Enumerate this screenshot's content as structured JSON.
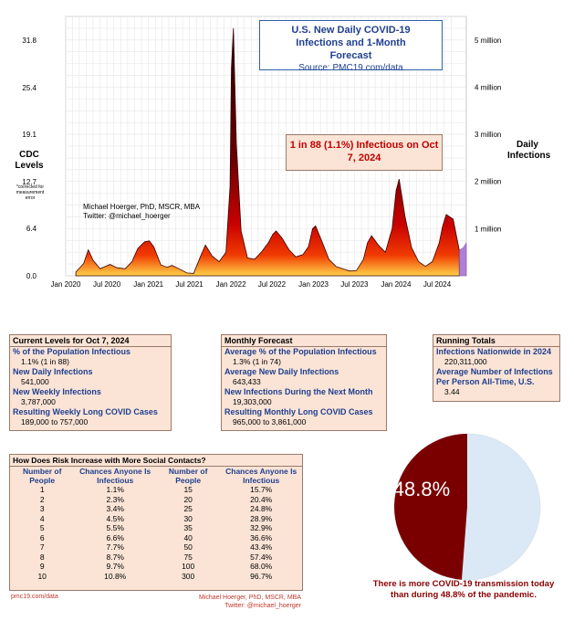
{
  "chart_data": [
    {
      "type": "area",
      "title": "U.S. New Daily COVID-19 Infections and 1-Month Forecast",
      "source": "Source: PMC19.com/data",
      "y_left_label": "CDC Levels",
      "y_left_note": "*corrected for measurement error",
      "y_right_label": "Daily Infections",
      "y_left_ticks": [
        "31.8",
        "25.4",
        "19.1",
        "12.7",
        "6.4",
        "0.0"
      ],
      "y_left_tick_values": [
        31.8,
        25.4,
        19.1,
        12.7,
        6.4,
        0.0
      ],
      "y_right_ticks": [
        "5 million",
        "4 million",
        "3 million",
        "2 million",
        "1 million"
      ],
      "y_right_tick_values": [
        5000000,
        4000000,
        3000000,
        2000000,
        1000000
      ],
      "x_ticks": [
        "Jan 2020",
        "Jul 2020",
        "Jan 2021",
        "Jul 2021",
        "Jan 2022",
        "Jul 2022",
        "Jan 2023",
        "Jul 2023",
        "Jan 2024",
        "Jul 2024"
      ],
      "ylim": [
        0,
        5500000
      ],
      "x_range": [
        "2020-01",
        "2024-11"
      ],
      "grid": true,
      "series": [
        {
          "x": [
            "2020-02-15",
            "2020-03-20",
            "2020-04-10",
            "2020-05-01",
            "2020-06-01",
            "2020-07-15",
            "2020-08-15",
            "2020-09-20",
            "2020-10-20",
            "2020-11-15",
            "2020-12-15",
            "2021-01-05",
            "2021-01-25",
            "2021-02-25",
            "2021-03-25",
            "2021-04-15",
            "2021-05-20",
            "2021-06-20",
            "2021-07-20",
            "2021-08-20",
            "2021-09-10",
            "2021-10-10",
            "2021-11-10",
            "2021-12-10",
            "2021-12-28",
            "2022-01-03",
            "2022-01-12",
            "2022-01-25",
            "2022-02-15",
            "2022-03-15",
            "2022-04-15",
            "2022-05-15",
            "2022-06-15",
            "2022-07-05",
            "2022-07-20",
            "2022-08-15",
            "2022-09-15",
            "2022-10-15",
            "2022-11-15",
            "2022-12-10",
            "2022-12-28",
            "2023-01-10",
            "2023-02-10",
            "2023-03-10",
            "2023-04-10",
            "2023-05-10",
            "2023-06-10",
            "2023-07-10",
            "2023-08-10",
            "2023-08-28",
            "2023-09-15",
            "2023-10-15",
            "2023-11-15",
            "2023-12-15",
            "2024-01-01",
            "2024-01-15",
            "2024-02-10",
            "2024-03-10",
            "2024-04-10",
            "2024-05-10",
            "2024-06-10",
            "2024-07-10",
            "2024-07-25",
            "2024-08-10",
            "2024-09-10",
            "2024-10-07",
            "2024-10-25",
            "2024-11-07"
          ],
          "y": [
            80000,
            260000,
            550000,
            330000,
            150000,
            240000,
            170000,
            150000,
            300000,
            580000,
            720000,
            740000,
            610000,
            230000,
            180000,
            220000,
            140000,
            60000,
            50000,
            420000,
            650000,
            420000,
            300000,
            500000,
            1900000,
            4400000,
            5250000,
            2800000,
            950000,
            380000,
            350000,
            500000,
            700000,
            880000,
            950000,
            800000,
            550000,
            400000,
            450000,
            620000,
            1000000,
            1060000,
            700000,
            350000,
            200000,
            150000,
            100000,
            110000,
            350000,
            700000,
            850000,
            650000,
            500000,
            1000000,
            1800000,
            2050000,
            1250000,
            600000,
            300000,
            200000,
            300000,
            700000,
            1050000,
            1300000,
            1200000,
            540000,
            600000,
            700000
          ],
          "forecast_from": "2024-10-07"
        }
      ],
      "annotation": "1 in 88 (1.1%) Infectious on Oct 7, 2024",
      "credit_line1": "Michael Hoerger, PhD, MSCR, MBA",
      "credit_line2": "Twitter: @michael_hoerger"
    },
    {
      "type": "pie",
      "values": [
        48.8,
        51.2
      ],
      "label": "48.8%",
      "caption": "There is more COVID-19 transmission today than during 48.8% of the pandemic."
    }
  ],
  "current": {
    "title": "Current Levels for Oct 7, 2024",
    "items": [
      {
        "k": "% of the Population Infectious",
        "v": "1.1% (1 in 88)"
      },
      {
        "k": "New Daily Infections",
        "v": "541,000"
      },
      {
        "k": "New Weekly Infections",
        "v": "3,787,000"
      },
      {
        "k": "Resulting Weekly Long COVID Cases",
        "v": "189,000 to 757,000"
      }
    ]
  },
  "monthly": {
    "title": "Monthly Forecast",
    "items": [
      {
        "k": "Average % of the Population Infectious",
        "v": "1.3% (1 in 74)"
      },
      {
        "k": "Average New Daily Infections",
        "v": "643,433"
      },
      {
        "k": "New Infections During the Next Month",
        "v": "19,303,000"
      },
      {
        "k": "Resulting Monthly Long COVID Cases",
        "v": "965,000 to 3,861,000"
      }
    ]
  },
  "running": {
    "title": "Running Totals",
    "items": [
      {
        "k": "Infections Nationwide in 2024",
        "v": "220,311,000"
      },
      {
        "k": "Average Number of Infections Per Person All-Time, U.S.",
        "v": "3.44"
      }
    ]
  },
  "risk": {
    "title": "How Does Risk Increase with More Social Contacts?",
    "col1": "Number of People",
    "col2": "Chances Anyone Is Infectious",
    "rows": [
      [
        "1",
        "1.1%",
        "15",
        "15.7%"
      ],
      [
        "2",
        "2.3%",
        "20",
        "20.4%"
      ],
      [
        "3",
        "3.4%",
        "25",
        "24.8%"
      ],
      [
        "4",
        "4.5%",
        "30",
        "28.9%"
      ],
      [
        "5",
        "5.5%",
        "35",
        "32.9%"
      ],
      [
        "6",
        "6.6%",
        "40",
        "36.6%"
      ],
      [
        "7",
        "7.7%",
        "50",
        "43.4%"
      ],
      [
        "8",
        "8.7%",
        "75",
        "57.4%"
      ],
      [
        "9",
        "9.7%",
        "100",
        "68.0%"
      ],
      [
        "10",
        "10.8%",
        "300",
        "96.7%"
      ]
    ]
  },
  "footer": {
    "left": "pmc19.com/data",
    "right1": "Michael Hoerger, PhD, MSCR, MBA",
    "right2": "Twitter: @michael_hoerger"
  },
  "colors": {
    "title_blue": "#1f3f8f",
    "panel_fill": "#fbe4d6",
    "pie_dark": "#7a0000",
    "pie_light": "#dbe9f6",
    "forecast": "#a06ad0"
  }
}
